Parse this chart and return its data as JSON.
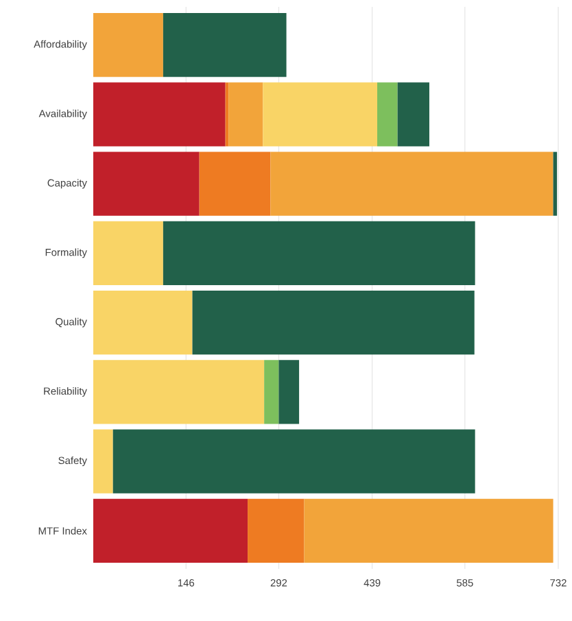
{
  "chart_data": {
    "type": "bar",
    "orientation": "horizontal",
    "stacked": true,
    "grid": "x",
    "categories": [
      "Affordability",
      "Availability",
      "Capacity",
      "Formality",
      "Quality",
      "Reliability",
      "Safety",
      "MTF Index"
    ],
    "series": [
      {
        "color": "#c1202a",
        "values": [
          null,
          208,
          167,
          null,
          null,
          null,
          null,
          243
        ]
      },
      {
        "color": "#ee7b22",
        "values": [
          null,
          5,
          112,
          null,
          null,
          null,
          null,
          89
        ]
      },
      {
        "color": "#f2a43a",
        "values": [
          110,
          54,
          445,
          null,
          null,
          null,
          null,
          392
        ]
      },
      {
        "color": "#f9d466",
        "values": [
          null,
          180,
          null,
          110,
          156,
          269,
          31,
          null
        ]
      },
      {
        "color": "#7dbf5d",
        "values": [
          null,
          32,
          null,
          null,
          null,
          23,
          null,
          null
        ]
      },
      {
        "color": "#22614a",
        "values": [
          194,
          50,
          6,
          491,
          444,
          32,
          570,
          null
        ]
      }
    ],
    "xlim": [
      0,
      732
    ],
    "xticks": [
      146,
      292,
      439,
      585,
      732
    ]
  }
}
